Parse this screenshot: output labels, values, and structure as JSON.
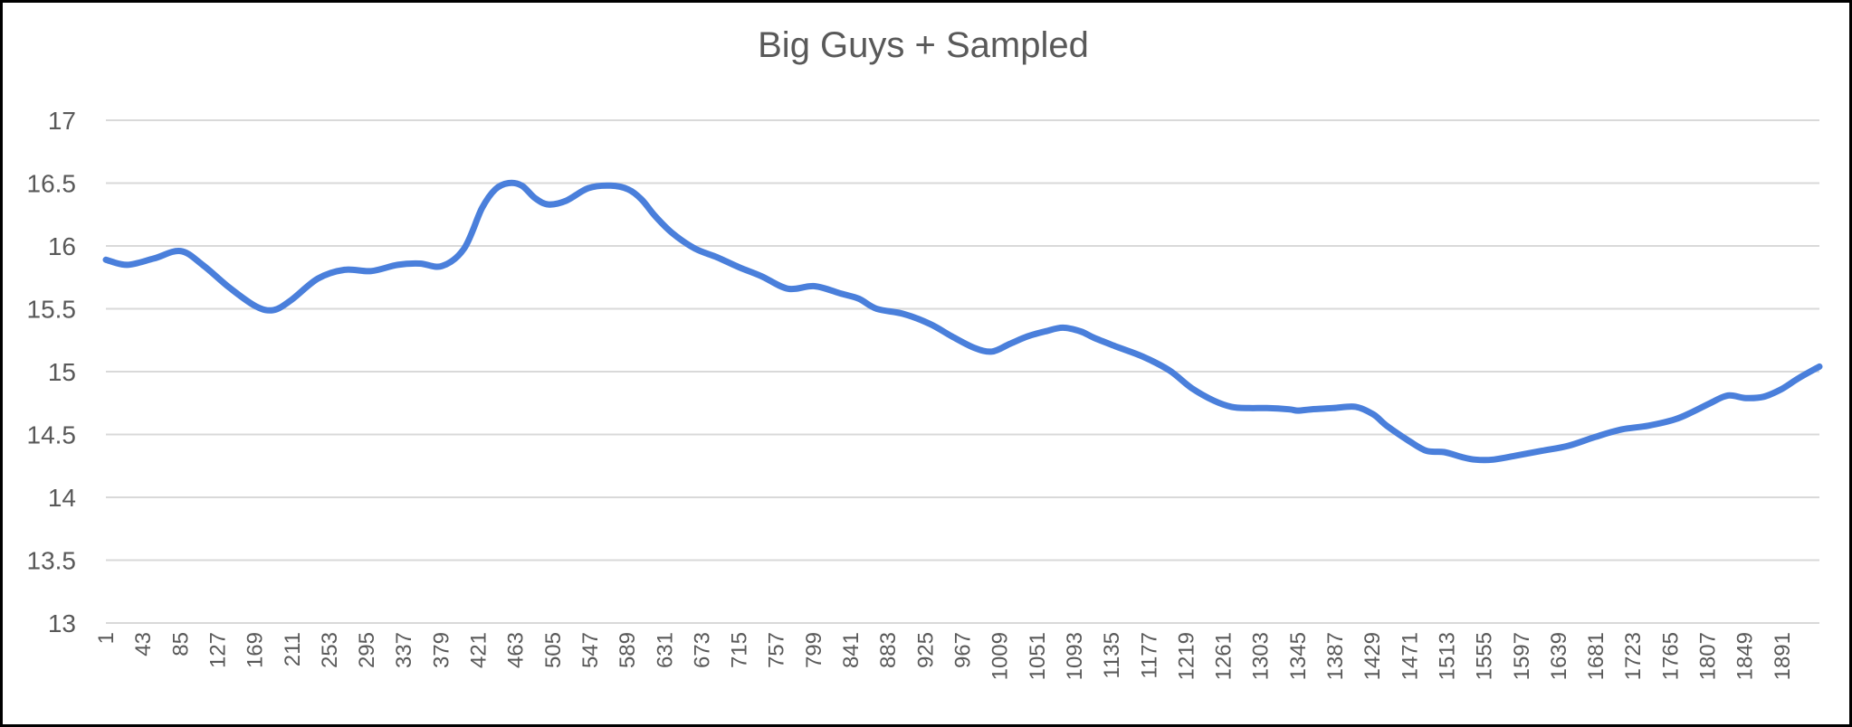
{
  "chart_data": {
    "type": "line",
    "title": "Big Guys + Sampled",
    "xlabel": "",
    "ylabel": "",
    "ylim": [
      13,
      17
    ],
    "yticks": [
      "13",
      "13.5",
      "14",
      "14.5",
      "15",
      "15.5",
      "16",
      "16.5",
      "17"
    ],
    "xlim": [
      1,
      1933
    ],
    "xticks": [
      "1",
      "43",
      "85",
      "127",
      "169",
      "211",
      "253",
      "295",
      "337",
      "379",
      "421",
      "463",
      "505",
      "547",
      "589",
      "631",
      "673",
      "715",
      "757",
      "799",
      "841",
      "883",
      "925",
      "967",
      "1009",
      "1051",
      "1093",
      "1135",
      "1177",
      "1219",
      "1261",
      "1303",
      "1345",
      "1387",
      "1429",
      "1471",
      "1513",
      "1555",
      "1597",
      "1639",
      "1681",
      "1723",
      "1765",
      "1807",
      "1849",
      "1891"
    ],
    "grid": "horizontal",
    "legend": "none",
    "line_color": "#4a7fdb",
    "series": [
      {
        "x": [
          1,
          25,
          55,
          85,
          110,
          140,
          170,
          190,
          210,
          240,
          270,
          300,
          330,
          355,
          380,
          405,
          425,
          440,
          455,
          470,
          485,
          500,
          520,
          545,
          570,
          590,
          605,
          620,
          640,
          665,
          690,
          715,
          740,
          770,
          800,
          830,
          850,
          870,
          900,
          930,
          955,
          980,
          1000,
          1020,
          1040,
          1060,
          1080,
          1100,
          1115,
          1140,
          1170,
          1200,
          1225,
          1250,
          1270,
          1290,
          1310,
          1335,
          1345,
          1360,
          1385,
          1410,
          1430,
          1445,
          1470,
          1490,
          1510,
          1530,
          1545,
          1565,
          1590,
          1620,
          1650,
          1680,
          1710,
          1740,
          1770,
          1790,
          1810,
          1830,
          1850,
          1870,
          1890,
          1910,
          1933
        ],
        "y": [
          15.89,
          15.85,
          15.9,
          15.96,
          15.85,
          15.67,
          15.52,
          15.49,
          15.57,
          15.74,
          15.81,
          15.8,
          15.85,
          15.86,
          15.84,
          15.98,
          16.3,
          16.45,
          16.5,
          16.48,
          16.38,
          16.33,
          16.36,
          16.46,
          16.48,
          16.45,
          16.37,
          16.24,
          16.1,
          15.98,
          15.91,
          15.83,
          15.76,
          15.66,
          15.68,
          15.62,
          15.58,
          15.5,
          15.46,
          15.38,
          15.28,
          15.19,
          15.16,
          15.22,
          15.28,
          15.32,
          15.35,
          15.32,
          15.27,
          15.2,
          15.12,
          15.01,
          14.87,
          14.77,
          14.72,
          14.71,
          14.71,
          14.7,
          14.69,
          14.7,
          14.71,
          14.72,
          14.66,
          14.57,
          14.45,
          14.37,
          14.36,
          14.32,
          14.3,
          14.3,
          14.33,
          14.37,
          14.41,
          14.48,
          14.54,
          14.57,
          14.62,
          14.68,
          14.75,
          14.81,
          14.79,
          14.8,
          14.86,
          14.95,
          15.04
        ]
      }
    ]
  }
}
